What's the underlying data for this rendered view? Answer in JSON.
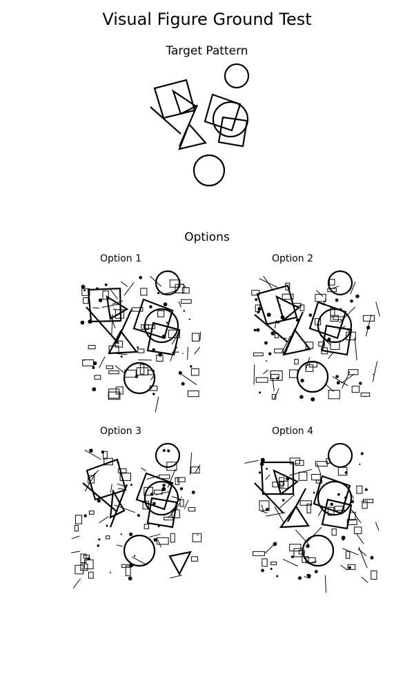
{
  "header": {
    "title": "Visual Figure Ground Test",
    "target_label": "Target Pattern",
    "options_label": "Options"
  },
  "options": [
    {
      "label": "Option 1"
    },
    {
      "label": "Option 2"
    },
    {
      "label": "Option 3"
    },
    {
      "label": "Option 4"
    }
  ]
}
